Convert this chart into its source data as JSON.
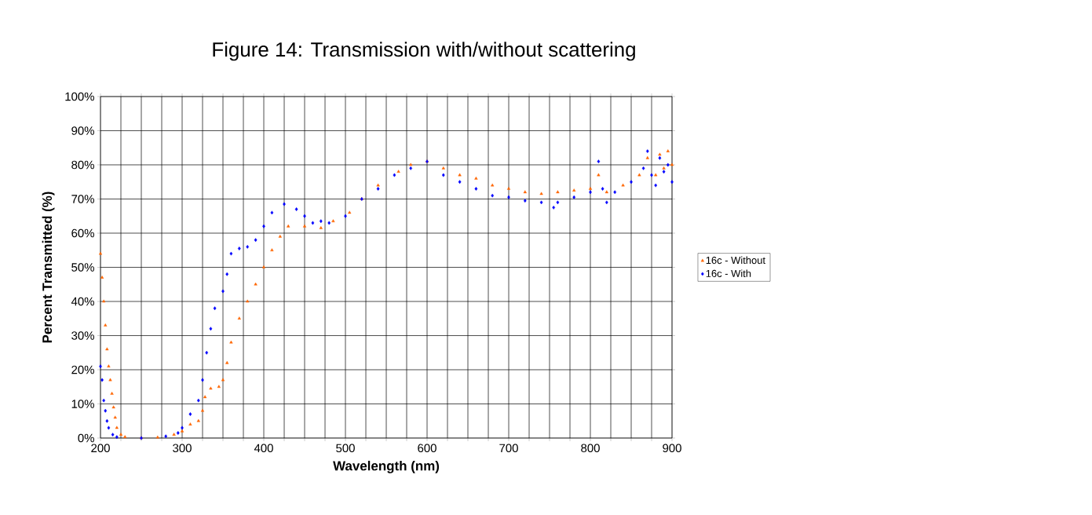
{
  "chart_data": {
    "type": "scatter",
    "title": "Figure 14: Transmission with/without scattering",
    "xlabel": "Wavelength (nm)",
    "ylabel": "Percent Transmitted (%)",
    "xlim": [
      200,
      900
    ],
    "ylim": [
      0,
      100
    ],
    "xticks": [
      200,
      {
        "value": 225,
        "label": null
      },
      {
        "value": 250,
        "label": null
      },
      {
        "value": 275,
        "label": null
      },
      300,
      {
        "value": 325,
        "label": null
      },
      {
        "value": 350,
        "label": null
      },
      {
        "value": 375,
        "label": null
      },
      400,
      {
        "value": 425,
        "label": null
      },
      {
        "value": 450,
        "label": null
      },
      {
        "value": 475,
        "label": null
      },
      500,
      {
        "value": 525,
        "label": null
      },
      {
        "value": 550,
        "label": null
      },
      {
        "value": 575,
        "label": null
      },
      600,
      {
        "value": 625,
        "label": null
      },
      {
        "value": 650,
        "label": null
      },
      {
        "value": 675,
        "label": null
      },
      700,
      {
        "value": 725,
        "label": null
      },
      {
        "value": 750,
        "label": null
      },
      {
        "value": 775,
        "label": null
      },
      800,
      {
        "value": 825,
        "label": null
      },
      {
        "value": 850,
        "label": null
      },
      {
        "value": 875,
        "label": null
      },
      900
    ],
    "yticks": [
      {
        "value": 0,
        "label": "0%"
      },
      {
        "value": 10,
        "label": "10%"
      },
      {
        "value": 20,
        "label": "20%"
      },
      {
        "value": 30,
        "label": "30%"
      },
      {
        "value": 40,
        "label": "40%"
      },
      {
        "value": 50,
        "label": "50%"
      },
      {
        "value": 60,
        "label": "60%"
      },
      {
        "value": 70,
        "label": "70%"
      },
      {
        "value": 80,
        "label": "80%"
      },
      {
        "value": 90,
        "label": "90%"
      },
      {
        "value": 100,
        "label": "100%"
      }
    ],
    "grid": true,
    "legend": "right",
    "series": [
      {
        "name": "16c - Without",
        "color": "#ff6600",
        "marker": "triangle",
        "x": [
          200,
          202,
          204,
          206,
          208,
          210,
          212,
          214,
          216,
          218,
          220,
          225,
          230,
          250,
          270,
          290,
          300,
          310,
          320,
          325,
          328,
          335,
          345,
          350,
          355,
          360,
          370,
          380,
          390,
          400,
          410,
          420,
          430,
          450,
          470,
          485,
          505,
          520,
          540,
          565,
          580,
          600,
          620,
          640,
          660,
          680,
          700,
          720,
          740,
          760,
          780,
          800,
          810,
          820,
          840,
          860,
          870,
          880,
          885,
          890,
          895,
          900
        ],
        "values": [
          54,
          47,
          40,
          33,
          26,
          21,
          17,
          13,
          9,
          6,
          3,
          1,
          0.3,
          0,
          0.2,
          1,
          2,
          4,
          5,
          8,
          12,
          14.5,
          15,
          17,
          22,
          28,
          35,
          40,
          45,
          50,
          55,
          59,
          62,
          62,
          61.5,
          63.5,
          66,
          70,
          74,
          78,
          80,
          81,
          79,
          77,
          76,
          74,
          73,
          72,
          71.5,
          72,
          72.5,
          73,
          77,
          72,
          74,
          77,
          82,
          77,
          83,
          79,
          84,
          80
        ]
      },
      {
        "name": "16c - With",
        "color": "#0000ff",
        "marker": "diamond",
        "x": [
          200,
          202,
          204,
          206,
          208,
          210,
          215,
          220,
          250,
          280,
          295,
          300,
          310,
          320,
          325,
          330,
          335,
          340,
          350,
          355,
          360,
          370,
          380,
          390,
          400,
          410,
          425,
          440,
          450,
          460,
          470,
          480,
          500,
          520,
          540,
          560,
          580,
          600,
          620,
          640,
          660,
          680,
          700,
          720,
          740,
          755,
          760,
          780,
          800,
          810,
          815,
          820,
          830,
          850,
          865,
          870,
          875,
          880,
          885,
          890,
          895,
          900
        ],
        "values": [
          21,
          17,
          11,
          8,
          5,
          3,
          1,
          0.3,
          0,
          0.5,
          1.5,
          3,
          7,
          11,
          17,
          25,
          32,
          38,
          43,
          48,
          54,
          55.5,
          56,
          58,
          62,
          66,
          68.5,
          67,
          65,
          63,
          63.5,
          63,
          65,
          70,
          73,
          77,
          79,
          81,
          77,
          75,
          73,
          71,
          70.5,
          69.5,
          69,
          67.5,
          69,
          70.5,
          72,
          81,
          73,
          69,
          72,
          75,
          79,
          84,
          77,
          74,
          82,
          78,
          80,
          75
        ]
      }
    ]
  }
}
